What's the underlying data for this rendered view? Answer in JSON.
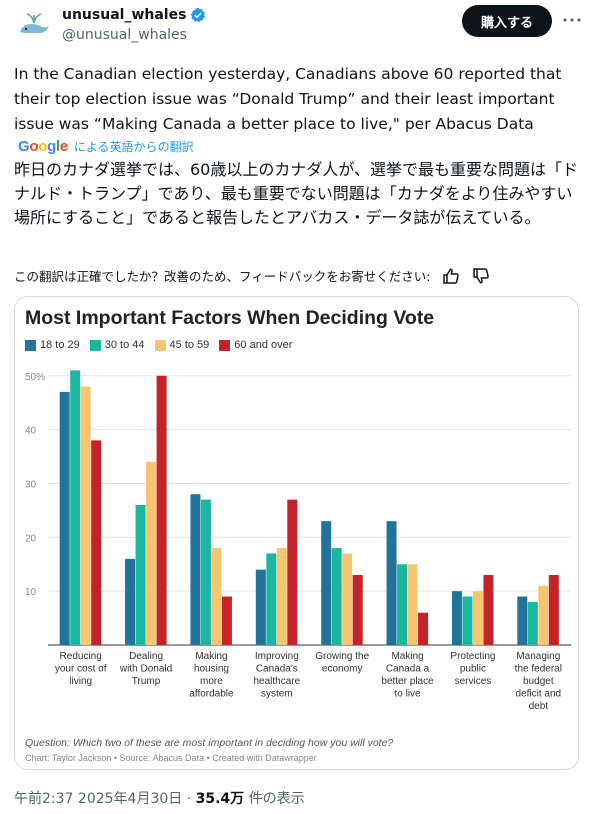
{
  "account": {
    "display_name": "unusual_whales",
    "handle": "@unusual_whales"
  },
  "header": {
    "buy_label": "購入する",
    "more_icon": "more-dots-icon"
  },
  "tweet": {
    "text": "In the Canadian election yesterday, Canadians above 60 reported that their top election issue was “Donald Trump” and their least important issue was “Making Canada a better place to live,\" per Abacus Data",
    "google_logo": "Google",
    "translated_by": "による英語からの翻訳",
    "translation": "昨日のカナダ選挙では、60歳以上のカナダ人が、選挙で最も重要な問題は「ドナルド・トランプ」であり、最も重要でない問題は「カナダをより住みやすい場所にすること」であると報告したとアバカス・データ誌が伝えている。",
    "feedback_prompt": "この翻訳は正確でしたか？改善のため、フィードバックをお寄せください:"
  },
  "meta": {
    "time": "午前2:37",
    "date": "2025年4月30日",
    "separator": "·",
    "views": "35.4万",
    "views_label": "件の表示"
  },
  "colors": {
    "s18": "#21739a",
    "s30": "#1bb6a0",
    "s45": "#f7c56f",
    "s60": "#c5222a"
  },
  "chart_data": {
    "type": "bar",
    "title": "Most Important Factors When Deciding Vote",
    "categories": [
      "Reducing your cost of living",
      "Dealing with Donald Trump",
      "Making housing more affordable",
      "Improving Canada's healthcare system",
      "Growing the economy",
      "Making Canada a better place to live",
      "Protecting public services",
      "Managing the federal budget deficit and debt"
    ],
    "category_lines": [
      [
        "Reducing",
        "your cost of",
        "living"
      ],
      [
        "Dealing",
        "with Donald",
        "Trump"
      ],
      [
        "Making",
        "housing",
        "more",
        "affordable"
      ],
      [
        "Improving",
        "Canada's",
        "healthcare",
        "system"
      ],
      [
        "Growing the",
        "economy"
      ],
      [
        "Making",
        "Canada a",
        "better place",
        "to live"
      ],
      [
        "Protecting",
        "public",
        "services"
      ],
      [
        "Managing",
        "the federal",
        "budget",
        "deficit and",
        "debt"
      ]
    ],
    "series": [
      {
        "name": "18 to 29",
        "values": [
          47,
          16,
          28,
          14,
          23,
          23,
          10,
          9
        ]
      },
      {
        "name": "30 to 44",
        "values": [
          51,
          26,
          27,
          17,
          18,
          15,
          9,
          8
        ]
      },
      {
        "name": "45 to 59",
        "values": [
          48,
          34,
          18,
          18,
          17,
          15,
          10,
          11
        ]
      },
      {
        "name": "60 and over",
        "values": [
          38,
          50,
          9,
          27,
          13,
          6,
          13,
          13
        ]
      }
    ],
    "ylim": [
      0,
      52
    ],
    "yticks": [
      "10",
      "20",
      "30",
      "40",
      "50%"
    ],
    "question": "Question: Which two of these are most important in deciding how you will vote?",
    "source": "Chart: Taylor Jackson • Source: Abacus Data • Created with Datawrapper"
  }
}
